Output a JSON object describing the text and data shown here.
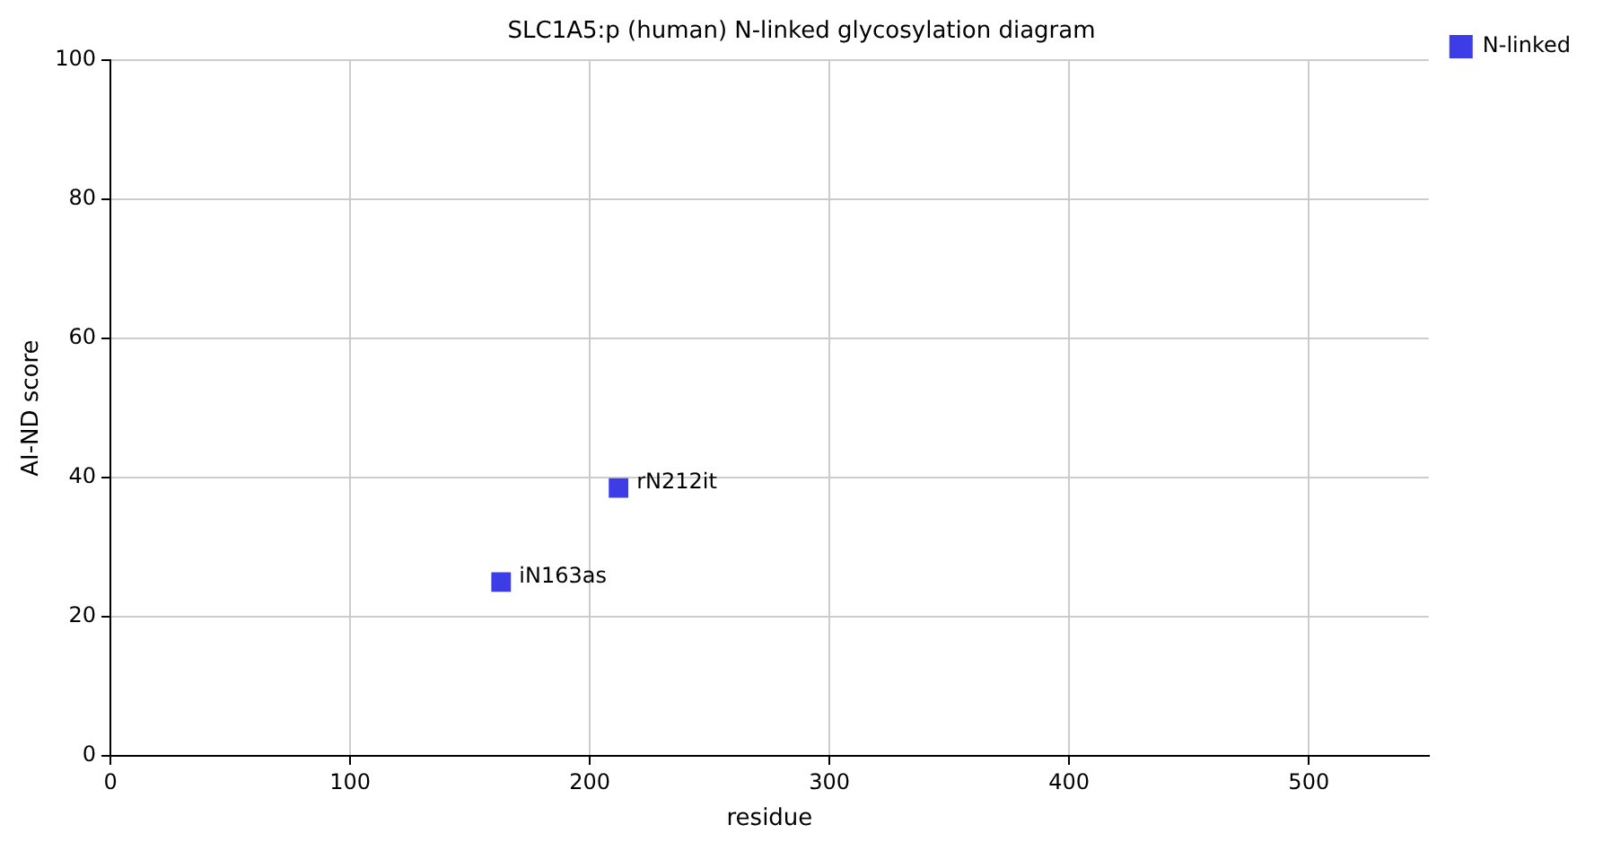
{
  "chart_data": {
    "type": "scatter",
    "title": "SLC1A5:p (human) N-linked glycosylation diagram",
    "xlabel": "residue",
    "ylabel": "AI-ND score",
    "x": [
      163,
      212
    ],
    "series": [
      {
        "name": "N-linked",
        "color": "#3d3de8",
        "values": [
          25,
          38.5
        ]
      }
    ],
    "annotations": [
      {
        "text": "iN163as",
        "x": 163,
        "y": 25
      },
      {
        "text": "rN212it",
        "x": 212,
        "y": 38.5
      }
    ],
    "xlim": [
      0,
      550
    ],
    "xticks": [
      0,
      100,
      200,
      300,
      400,
      500
    ],
    "ylim": [
      0,
      100
    ],
    "yticks": [
      0,
      20,
      40,
      60,
      80,
      100
    ],
    "grid": true,
    "legend": "top right",
    "marker": "square"
  }
}
